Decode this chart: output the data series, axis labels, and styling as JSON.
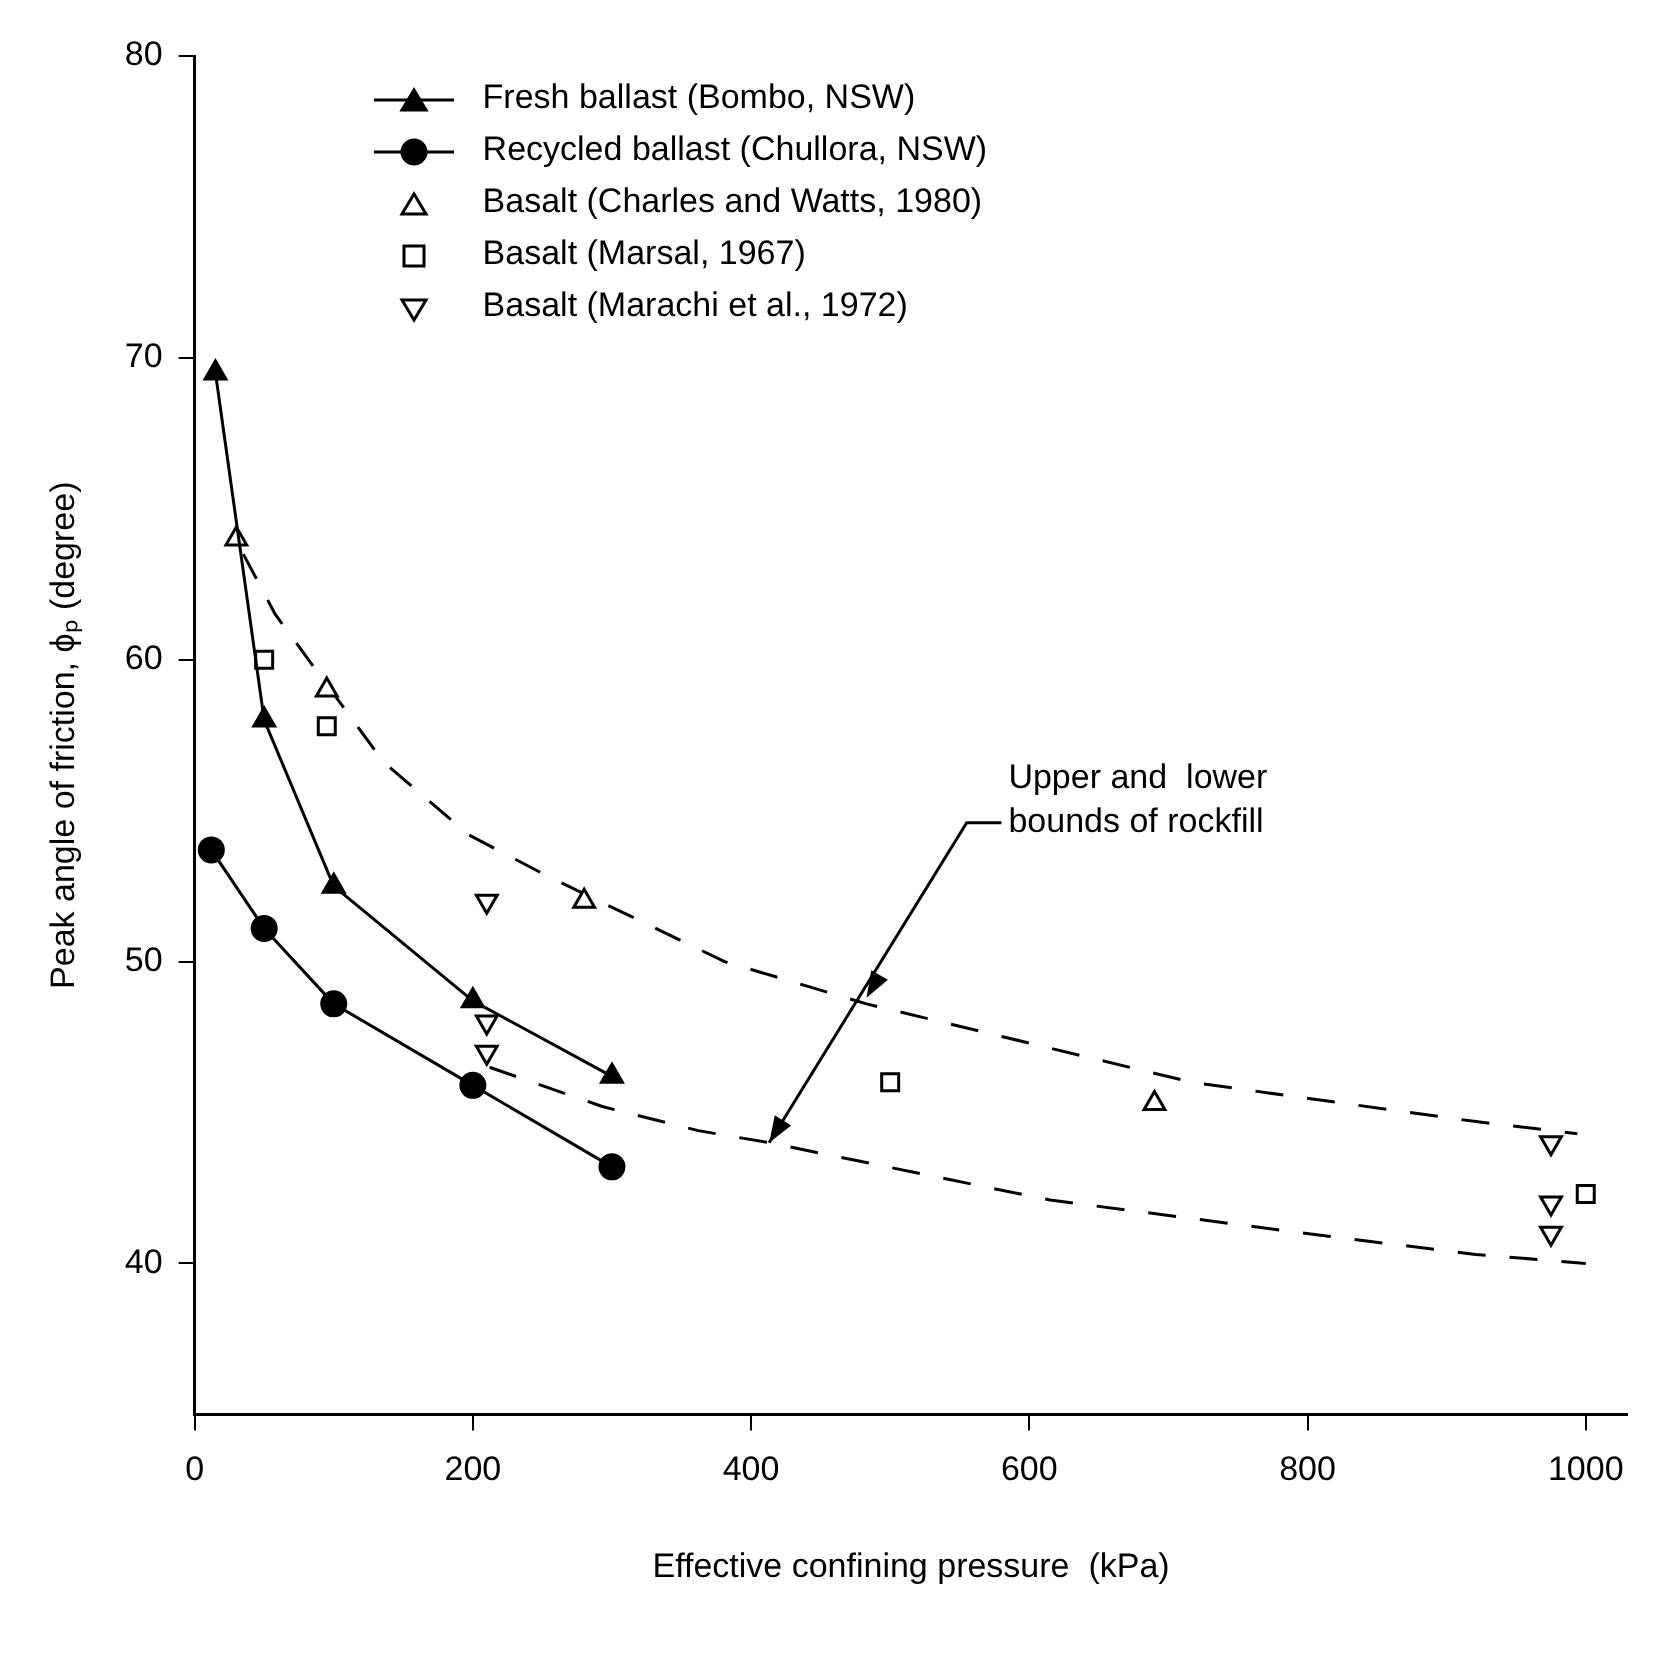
{
  "chart_data": {
    "type": "line",
    "xlabel": "Effective confining pressure  (kPa)",
    "ylabel": "Peak angle of friction, ϕₚ (degree)",
    "xlim": [
      0,
      1030
    ],
    "xticks": [
      0,
      200,
      400,
      600,
      800,
      1000
    ],
    "ylim": [
      35,
      80
    ],
    "yticks": [
      40,
      50,
      60,
      70,
      80
    ],
    "grid": false,
    "legend": "top left",
    "annotations": [
      {
        "text": "Upper and  lower\nbounds of rockfill",
        "x": 413,
        "y": 44
      }
    ],
    "series": [
      {
        "name": "Fresh ballast (Bombo, NSW)",
        "color": "#000000",
        "marker": "triangle",
        "line_style": "solid",
        "x": [
          15,
          50,
          100,
          200,
          300
        ],
        "values": [
          69.5,
          58,
          52.5,
          48.7,
          46.2
        ]
      },
      {
        "name": "Recycled ballast (Chullora, NSW)",
        "color": "#000000",
        "marker": "circle",
        "line_style": "solid",
        "x": [
          12,
          50,
          100,
          200,
          300
        ],
        "values": [
          53.7,
          51.1,
          48.6,
          45.9,
          43.2
        ]
      },
      {
        "name": "Basalt (Charles and Watts, 1980)",
        "type": "scatter",
        "color": "#000000",
        "marker": "triangle",
        "x": [
          30,
          95,
          280,
          690
        ],
        "values": [
          64,
          59,
          52,
          45.3
        ]
      },
      {
        "name": "Basalt (Marsal, 1967)",
        "type": "scatter",
        "color": "#000000",
        "marker": "square",
        "x": [
          50,
          95,
          500,
          1000
        ],
        "values": [
          60,
          57.8,
          46,
          42.3
        ]
      },
      {
        "name": "Basalt (Marachi et al., 1972)",
        "type": "scatter",
        "color": "#000000",
        "marker": "triangle_down",
        "x": [
          210,
          210,
          210,
          975,
          975,
          975
        ],
        "values": [
          52,
          48,
          47,
          44,
          42,
          41
        ]
      },
      {
        "color": "#000000",
        "marker": "none",
        "line_style": "dashed",
        "x": [
          35,
          58,
          136,
          197,
          255,
          381,
          483,
          717,
          921,
          994
        ],
        "values": [
          63.5,
          61.5,
          56.6,
          54.2,
          52.8,
          50,
          48.6,
          46,
          44.7,
          44.3
        ]
      },
      {
        "color": "#000000",
        "marker": "none",
        "line_style": "dashed",
        "x": [
          212,
          293,
          362,
          413,
          615,
          815,
          921,
          1000
        ],
        "values": [
          46.5,
          45.2,
          44.4,
          44,
          42.1,
          40.9,
          40.3,
          40
        ]
      }
    ]
  }
}
